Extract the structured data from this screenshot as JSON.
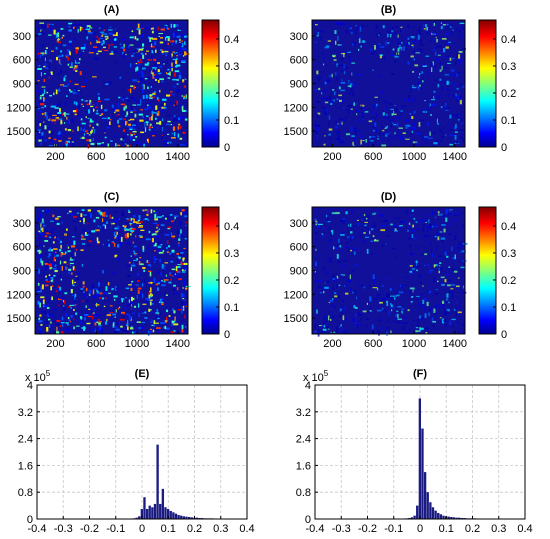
{
  "figure": {
    "colors": {
      "axis": "#000000",
      "grid": "#c8c8c8",
      "hist_bar": "#1a1a80",
      "map_background": "#10109a"
    },
    "colormap": "jet"
  },
  "chart_data": [
    {
      "type": "heatmap",
      "panel": "(A)",
      "title": "(A)",
      "x_ticks": [
        "200",
        "600",
        "1000",
        "1400"
      ],
      "y_ticks": [
        "300",
        "600",
        "900",
        "1200",
        "1500"
      ],
      "xlim": [
        0,
        1500
      ],
      "ylim": [
        1700,
        100
      ],
      "colorbar": {
        "ticks": [
          "0",
          "0.1",
          "0.2",
          "0.3",
          "0.4"
        ],
        "range": [
          0,
          0.47
        ]
      },
      "description_level": "high"
    },
    {
      "type": "heatmap",
      "panel": "(B)",
      "title": "(B)",
      "x_ticks": [
        "200",
        "600",
        "1000",
        "1400"
      ],
      "y_ticks": [
        "300",
        "600",
        "900",
        "1200",
        "1500"
      ],
      "xlim": [
        0,
        1500
      ],
      "ylim": [
        1700,
        100
      ],
      "colorbar": {
        "ticks": [
          "0",
          "0.1",
          "0.2",
          "0.3",
          "0.4"
        ],
        "range": [
          0,
          0.47
        ]
      },
      "description_level": "low"
    },
    {
      "type": "heatmap",
      "panel": "(C)",
      "title": "(C)",
      "x_ticks": [
        "200",
        "600",
        "1000",
        "1400"
      ],
      "y_ticks": [
        "300",
        "600",
        "900",
        "1200",
        "1500"
      ],
      "xlim": [
        0,
        1500
      ],
      "ylim": [
        1700,
        100
      ],
      "colorbar": {
        "ticks": [
          "0",
          "0.1",
          "0.2",
          "0.3",
          "0.4"
        ],
        "range": [
          0,
          0.47
        ]
      },
      "description_level": "high"
    },
    {
      "type": "heatmap",
      "panel": "(D)",
      "title": "(D)",
      "x_ticks": [
        "200",
        "600",
        "1000",
        "1400"
      ],
      "y_ticks": [
        "300",
        "600",
        "900",
        "1200",
        "1500"
      ],
      "xlim": [
        0,
        1500
      ],
      "ylim": [
        1700,
        100
      ],
      "colorbar": {
        "ticks": [
          "0",
          "0.1",
          "0.2",
          "0.3",
          "0.4"
        ],
        "range": [
          0,
          0.47
        ]
      },
      "description_level": "low"
    },
    {
      "type": "bar",
      "panel": "(E)",
      "title": "(E)",
      "multiplier_label": "x 10",
      "multiplier_exponent": "5",
      "xlim": [
        -0.4,
        0.4
      ],
      "ylim": [
        0,
        4
      ],
      "x_ticks": [
        "-0.4",
        "-0.3",
        "-0.2",
        "-0.1",
        "0",
        "0.1",
        "0.2",
        "0.3",
        "0.4"
      ],
      "y_ticks": [
        "0",
        "0.8",
        "1.6",
        "2.4",
        "3.2",
        "4"
      ],
      "grid": true,
      "bin_width": 0.01,
      "bins": [
        -0.04,
        -0.03,
        -0.02,
        -0.01,
        0.0,
        0.01,
        0.02,
        0.03,
        0.04,
        0.05,
        0.06,
        0.07,
        0.08,
        0.09,
        0.1,
        0.11,
        0.12,
        0.13,
        0.14,
        0.15,
        0.16,
        0.17,
        0.18,
        0.19,
        0.2,
        0.21,
        0.22,
        0.23,
        0.24,
        0.25,
        0.26,
        0.27,
        0.28,
        0.29,
        0.3,
        0.31,
        0.32,
        0.33,
        0.34,
        0.35,
        0.36
      ],
      "values": [
        0.01,
        0.02,
        0.04,
        0.08,
        0.3,
        0.65,
        0.3,
        0.4,
        0.35,
        0.45,
        2.22,
        0.45,
        0.9,
        0.35,
        0.3,
        0.24,
        0.2,
        0.16,
        0.12,
        0.1,
        0.08,
        0.07,
        0.06,
        0.05,
        0.04,
        0.04,
        0.03,
        0.03,
        0.02,
        0.02,
        0.02,
        0.02,
        0.01,
        0.01,
        0.01,
        0.01,
        0.01,
        0.01,
        0.01,
        0.01,
        0.01
      ]
    },
    {
      "type": "bar",
      "panel": "(F)",
      "title": "(F)",
      "multiplier_label": "x 10",
      "multiplier_exponent": "5",
      "xlim": [
        -0.4,
        0.4
      ],
      "ylim": [
        0,
        4
      ],
      "x_ticks": [
        "-0.4",
        "-0.3",
        "-0.2",
        "-0.1",
        "0",
        "0.1",
        "0.2",
        "0.3",
        "0.4"
      ],
      "y_ticks": [
        "0",
        "0.8",
        "1.6",
        "2.4",
        "3.2",
        "4"
      ],
      "grid": true,
      "bin_width": 0.01,
      "bins": [
        -0.06,
        -0.05,
        -0.04,
        -0.03,
        -0.02,
        -0.01,
        0.0,
        0.01,
        0.02,
        0.03,
        0.04,
        0.05,
        0.06,
        0.07,
        0.08,
        0.09,
        0.1,
        0.11,
        0.12,
        0.13,
        0.14,
        0.15,
        0.16,
        0.17,
        0.18,
        0.19,
        0.2,
        0.21,
        0.22,
        0.23,
        0.24,
        0.25,
        0.26,
        0.27,
        0.28,
        0.29,
        0.3,
        0.31,
        0.32,
        0.33,
        0.34,
        0.35,
        0.36
      ],
      "values": [
        0.01,
        0.02,
        0.03,
        0.05,
        0.1,
        0.4,
        3.6,
        2.7,
        1.4,
        0.8,
        0.5,
        0.35,
        0.25,
        0.18,
        0.14,
        0.1,
        0.08,
        0.07,
        0.06,
        0.05,
        0.04,
        0.04,
        0.03,
        0.03,
        0.02,
        0.02,
        0.02,
        0.02,
        0.01,
        0.01,
        0.01,
        0.01,
        0.01,
        0.01,
        0.01,
        0.01,
        0.01,
        0.01,
        0.01,
        0.01,
        0.01,
        0.01,
        0.01
      ]
    }
  ]
}
